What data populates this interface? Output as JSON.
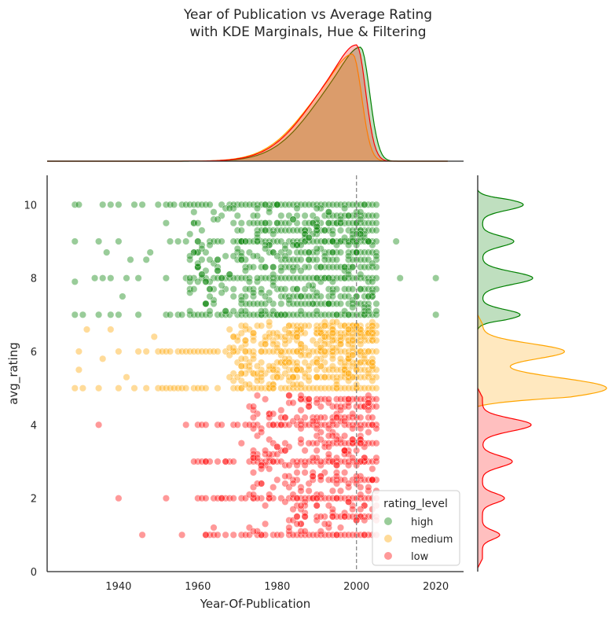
{
  "chart_data": {
    "type": "scatter",
    "title_lines": [
      "Year of Publication vs Average Rating",
      "with KDE Marginals, Hue & Filtering"
    ],
    "xlabel": "Year-Of-Publication",
    "ylabel": "avg_rating",
    "xlim": [
      1922,
      2027
    ],
    "ylim": [
      0,
      10.8
    ],
    "x_ticks": [
      1940,
      1960,
      1980,
      2000,
      2020
    ],
    "y_ticks": [
      0,
      2,
      4,
      6,
      8,
      10
    ],
    "reference_line": {
      "x": 2000,
      "style": "dashed",
      "color": "#808080"
    },
    "legend": {
      "title": "rating_level",
      "placement": "lower right",
      "entries": [
        {
          "name": "high",
          "color": "#008000"
        },
        {
          "name": "medium",
          "color": "#ffa500"
        },
        {
          "name": "low",
          "color": "#ff0000"
        }
      ]
    },
    "series": [
      {
        "name": "high",
        "color": "#008000",
        "rating_range": [
          7,
          10
        ],
        "dense_year_range": [
          1970,
          2005
        ],
        "sample_points": [
          [
            1929,
            10
          ],
          [
            1930,
            10
          ],
          [
            1936,
            10
          ],
          [
            1938,
            10
          ],
          [
            1940,
            10
          ],
          [
            1944,
            10
          ],
          [
            1946,
            10
          ],
          [
            1950,
            10
          ],
          [
            1929,
            9
          ],
          [
            1929,
            7.9
          ],
          [
            1929,
            7
          ],
          [
            1931,
            7
          ],
          [
            1935,
            7
          ],
          [
            1938,
            7
          ],
          [
            1940,
            7
          ],
          [
            1945,
            7
          ],
          [
            1934,
            8
          ],
          [
            1936,
            8
          ],
          [
            1938,
            8
          ],
          [
            1942,
            8
          ],
          [
            1945,
            8
          ],
          [
            1941,
            7.5
          ],
          [
            1947,
            8.5
          ],
          [
            1935,
            9
          ],
          [
            1940,
            9
          ],
          [
            1937,
            8.7
          ],
          [
            1943,
            8.5
          ],
          [
            1948,
            8.7
          ],
          [
            1952,
            9.5
          ],
          [
            2010,
            9
          ],
          [
            2011,
            8
          ],
          [
            2020,
            8
          ],
          [
            2020,
            7
          ]
        ]
      },
      {
        "name": "medium",
        "color": "#ffa500",
        "rating_range": [
          5,
          6.8
        ],
        "dense_year_range": [
          1980,
          2005
        ],
        "sample_points": [
          [
            1929,
            5
          ],
          [
            1930,
            5.5
          ],
          [
            1930,
            6
          ],
          [
            1931,
            5
          ],
          [
            1932,
            6.6
          ],
          [
            1935,
            5
          ],
          [
            1936,
            5.8
          ],
          [
            1938,
            6.6
          ],
          [
            1940,
            5
          ],
          [
            1940,
            6
          ],
          [
            1942,
            5.3
          ],
          [
            1944,
            5
          ],
          [
            1945,
            6
          ],
          [
            1947,
            6
          ],
          [
            1947,
            5
          ],
          [
            1949,
            6.4
          ]
        ]
      },
      {
        "name": "low",
        "color": "#ff0000",
        "rating_range": [
          1,
          4.8
        ],
        "dense_year_range": [
          1985,
          2005
        ],
        "sample_points": [
          [
            1935,
            4
          ],
          [
            1940,
            2
          ],
          [
            1952,
            2
          ],
          [
            1946,
            1
          ],
          [
            1956,
            1
          ],
          [
            1962,
            1
          ],
          [
            1964,
            1.2
          ],
          [
            1957,
            4
          ],
          [
            1959,
            3
          ],
          [
            1962,
            3
          ],
          [
            1966,
            2
          ],
          [
            1967,
            3
          ],
          [
            1971,
            3.5
          ]
        ]
      }
    ],
    "marginal_x": {
      "type": "kde",
      "series": [
        {
          "name": "high",
          "mode_year": 2001
        },
        {
          "name": "medium",
          "mode_year": 1999
        },
        {
          "name": "low",
          "mode_year": 2000
        }
      ]
    },
    "marginal_y": {
      "type": "kde",
      "series": [
        {
          "name": "high",
          "peaks": [
            10,
            9,
            8,
            7
          ]
        },
        {
          "name": "medium",
          "peaks": [
            6,
            5
          ]
        },
        {
          "name": "low",
          "peaks": [
            4,
            3,
            2,
            1
          ]
        }
      ]
    }
  }
}
